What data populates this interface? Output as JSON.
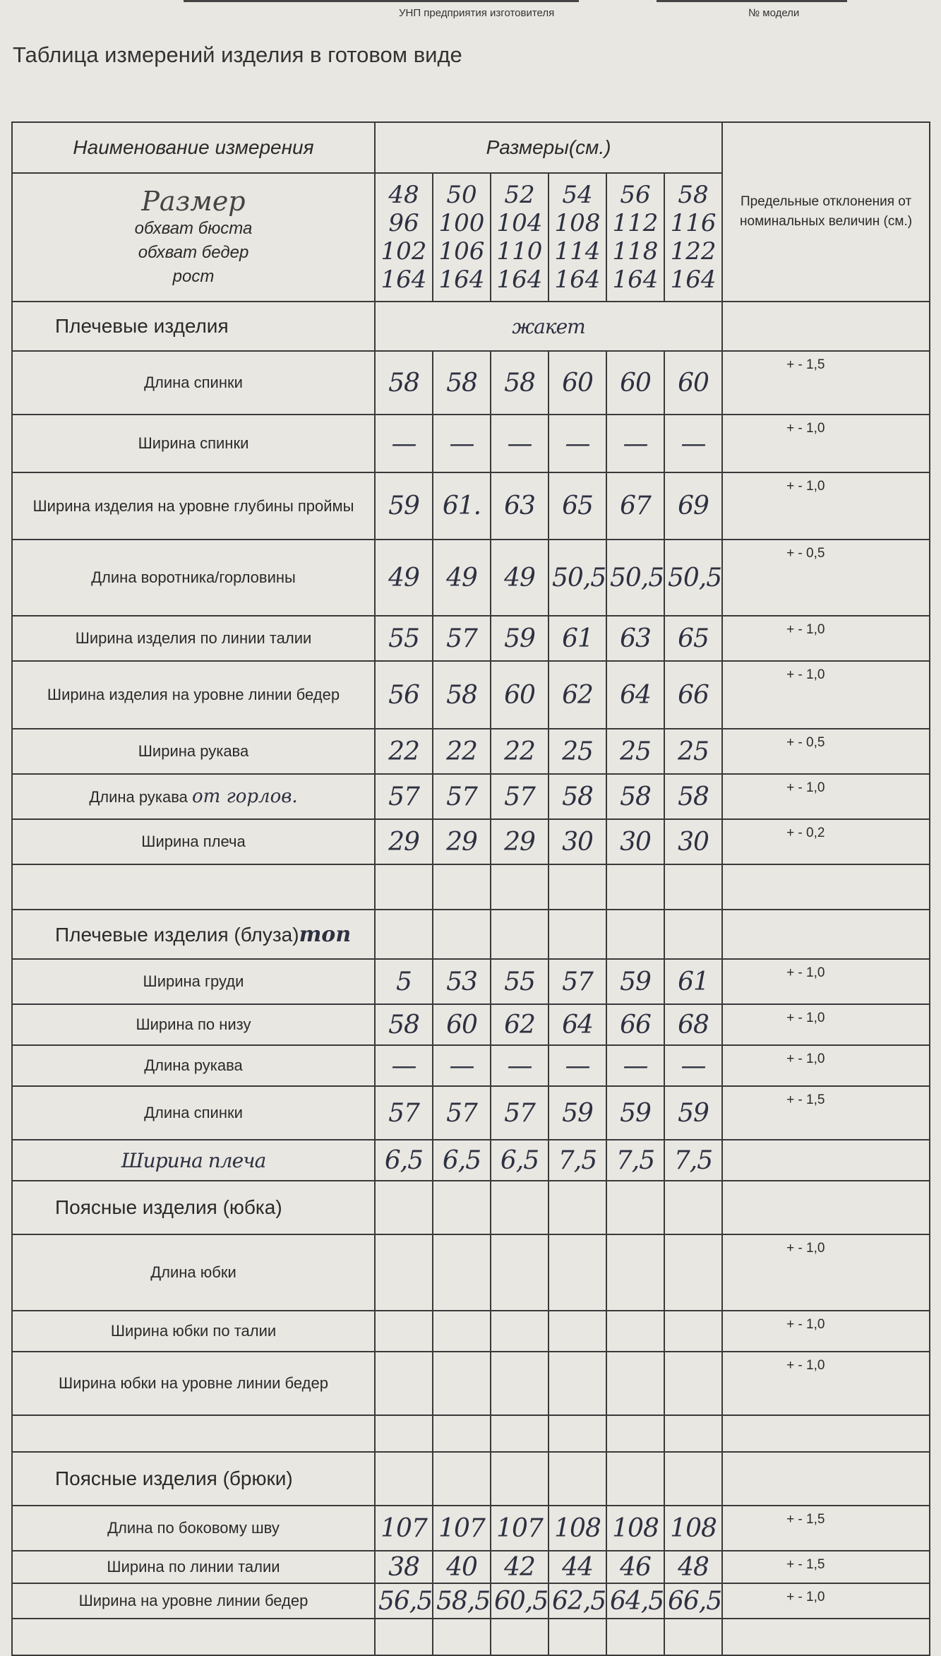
{
  "top_labels": {
    "unp": "УНП предприятия изготовителя",
    "model": "№ модели"
  },
  "title": "Таблица измерений изделия в готовом виде",
  "header": {
    "name_col": "Наименование измерения",
    "sizes_col": "Размеры(см.)",
    "tolerance_col": "Предельные отклонения от номинальных величин (см.)"
  },
  "size_block": {
    "handwritten_label": "Размер",
    "labels": [
      "обхват бюста",
      "обхват бедер",
      "рост"
    ],
    "columns": [
      [
        "48",
        "96",
        "102",
        "164"
      ],
      [
        "50",
        "100",
        "106",
        "164"
      ],
      [
        "52",
        "104",
        "110",
        "164"
      ],
      [
        "54",
        "108",
        "114",
        "164"
      ],
      [
        "56",
        "112",
        "118",
        "164"
      ],
      [
        "58",
        "116",
        "122",
        "164"
      ]
    ]
  },
  "rows": [
    {
      "type": "section",
      "label": "Плечевые изделия",
      "note": "жакет"
    },
    {
      "label": "Длина спинки",
      "values": [
        "58",
        "58",
        "58",
        "60",
        "60",
        "60"
      ],
      "tol": "+ - 1,5"
    },
    {
      "label": "Ширина спинки",
      "values": [
        "—",
        "—",
        "—",
        "—",
        "—",
        "—"
      ],
      "tol": "+ - 1,0"
    },
    {
      "label": "Ширина изделия на уровне глубины проймы",
      "values": [
        "59",
        "61.",
        "63",
        "65",
        "67",
        "69"
      ],
      "tol": "+ - 1,0"
    },
    {
      "label": "Длина воротника/горловины",
      "values": [
        "49",
        "49",
        "49",
        "50,5",
        "50,5",
        "50,5"
      ],
      "tol": "+ - 0,5"
    },
    {
      "label": "Ширина изделия по линии талии",
      "values": [
        "55",
        "57",
        "59",
        "61",
        "63",
        "65"
      ],
      "tol": "+ - 1,0"
    },
    {
      "label": "Ширина изделия на уровне линии бедер",
      "values": [
        "56",
        "58",
        "60",
        "62",
        "64",
        "66"
      ],
      "tol": "+ - 1,0"
    },
    {
      "label": "Ширина рукава",
      "values": [
        "22",
        "22",
        "22",
        "25",
        "25",
        "25"
      ],
      "tol": "+ - 0,5"
    },
    {
      "label": "Длина рукава",
      "label_note": "от горлов.",
      "values": [
        "57",
        "57",
        "57",
        "58",
        "58",
        "58"
      ],
      "tol": "+ - 1,0"
    },
    {
      "label": "Ширина плеча",
      "values": [
        "29",
        "29",
        "29",
        "30",
        "30",
        "30"
      ],
      "tol": "+ - 0,2"
    },
    {
      "type": "empty"
    },
    {
      "type": "section",
      "label": "Плечевые изделия (блуза)",
      "label_note": "топ"
    },
    {
      "label": "Ширина груди",
      "values": [
        "5",
        "53",
        "55",
        "57",
        "59",
        "61"
      ],
      "tol": "+ - 1,0"
    },
    {
      "label": "Ширина по низу",
      "values": [
        "58",
        "60",
        "62",
        "64",
        "66",
        "68"
      ],
      "tol": "+ - 1,0"
    },
    {
      "label": "Длина рукава",
      "values": [
        "—",
        "—",
        "—",
        "—",
        "—",
        "—"
      ],
      "tol": "+ - 1,0"
    },
    {
      "label": "Длина спинки",
      "values": [
        "57",
        "57",
        "57",
        "59",
        "59",
        "59"
      ],
      "tol": "+ - 1,5"
    },
    {
      "label": "Ширина плеча",
      "handwritten": true,
      "values": [
        "6,5",
        "6,5",
        "6,5",
        "7,5",
        "7,5",
        "7,5"
      ],
      "tol": ""
    },
    {
      "type": "section",
      "label": "Поясные изделия (юбка)"
    },
    {
      "label": "Длина юбки",
      "values": [
        "",
        "",
        "",
        "",
        "",
        ""
      ],
      "tol": "+ - 1,0"
    },
    {
      "label": "Ширина юбки по талии",
      "values": [
        "",
        "",
        "",
        "",
        "",
        ""
      ],
      "tol": "+ - 1,0"
    },
    {
      "label": "Ширина юбки на уровне линии бедер",
      "values": [
        "",
        "",
        "",
        "",
        "",
        ""
      ],
      "tol": "+ - 1,0"
    },
    {
      "type": "empty"
    },
    {
      "type": "section",
      "label": "Поясные изделия (брюки)"
    },
    {
      "label": "Длина по боковому шву",
      "values": [
        "107",
        "107",
        "107",
        "108",
        "108",
        "108"
      ],
      "tol": "+ - 1,5"
    },
    {
      "label": "Ширина по линии талии",
      "values": [
        "38",
        "40",
        "42",
        "44",
        "46",
        "48"
      ],
      "tol": "+ - 1,5"
    },
    {
      "label": "Ширина на уровне линии бедер",
      "values": [
        "56,5",
        "58,5",
        "60,5",
        "62,5",
        "64,5",
        "66,5"
      ],
      "tol": "+ - 1,0"
    },
    {
      "type": "empty"
    }
  ]
}
